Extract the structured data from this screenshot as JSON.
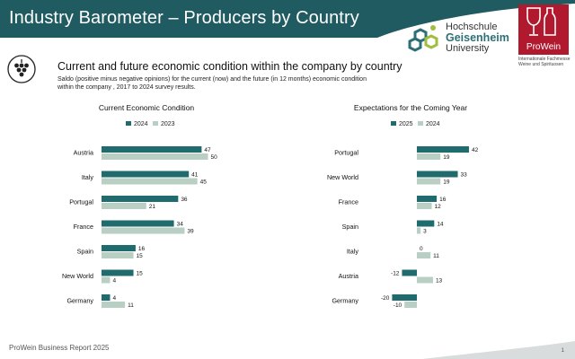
{
  "header": {
    "title": "Industry Barometer – Producers by Country",
    "colors": {
      "band": "#1f5b61",
      "accent": "#2e6f76"
    }
  },
  "logos": {
    "hochschule": {
      "line1": "Hochschule",
      "line2": "Geisenheim",
      "line3": "University",
      "icon": "hexagon-molecule-icon"
    },
    "prowein": {
      "name": "ProWein",
      "subtitle": "Internationale Fachmesse Weine und Spirituosen",
      "color": "#b11a2e",
      "icon": "wine-glass-icon"
    }
  },
  "section": {
    "icon": "grapes-icon",
    "subtitle": "Current and future economic condition within the company by country",
    "description": "Saldo (positive minus negative opinions) for the current (now) and the future (in 12 months) economic condition within the company , 2017 to 2024 survey results."
  },
  "chart_data": [
    {
      "type": "bar",
      "orientation": "horizontal",
      "title": "Current Economic Condition",
      "categories": [
        "Austria",
        "Italy",
        "Portugal",
        "France",
        "Spain",
        "New World",
        "Germany"
      ],
      "series": [
        {
          "name": "2024",
          "color": "#1f6b6e",
          "values": [
            47,
            41,
            36,
            34,
            16,
            15,
            4
          ]
        },
        {
          "name": "2023",
          "color": "#b9cfc3",
          "values": [
            50,
            45,
            21,
            39,
            15,
            4,
            11
          ]
        }
      ],
      "legend": "top"
    },
    {
      "type": "bar",
      "orientation": "horizontal",
      "title": "Expectations for the Coming Year",
      "categories": [
        "Portugal",
        "New World",
        "France",
        "Spain",
        "Italy",
        "Austria",
        "Germany"
      ],
      "series": [
        {
          "name": "2025",
          "color": "#1f6b6e",
          "values": [
            42,
            33,
            16,
            14,
            0,
            -12,
            -20
          ]
        },
        {
          "name": "2024",
          "color": "#b9cfc3",
          "values": [
            19,
            19,
            12,
            3,
            11,
            13,
            -10
          ]
        }
      ],
      "legend": "top"
    }
  ],
  "footer": {
    "text": "ProWein Business Report 2025",
    "page": "1"
  }
}
